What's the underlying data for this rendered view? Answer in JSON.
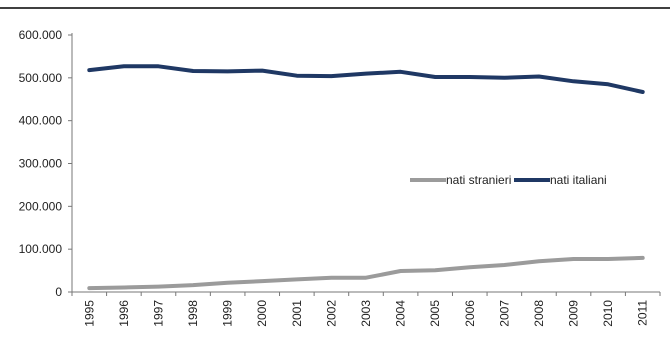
{
  "chart_data": {
    "type": "line",
    "title": "",
    "xlabel": "",
    "ylabel": "",
    "categories": [
      "1995",
      "1996",
      "1997",
      "1998",
      "1999",
      "2000",
      "2001",
      "2002",
      "2003",
      "2004",
      "2005",
      "2006",
      "2007",
      "2008",
      "2009",
      "2010",
      "2011"
    ],
    "ylim": [
      0,
      600000
    ],
    "yticks": [
      0,
      100000,
      200000,
      300000,
      400000,
      500000,
      600000
    ],
    "ytick_labels": [
      "0",
      "100.000",
      "200.000",
      "300.000",
      "400.000",
      "500.000",
      "600.000"
    ],
    "grid": false,
    "legend": "center-right",
    "series": [
      {
        "name": "nati stranieri",
        "color": "#9b9b9b",
        "values": [
          9000,
          10500,
          12500,
          16000,
          21500,
          25500,
          29500,
          33500,
          33500,
          49000,
          51000,
          58000,
          63000,
          72000,
          77000,
          77000,
          79500
        ]
      },
      {
        "name": "nati italiani",
        "color": "#1f3864",
        "values": [
          518000,
          527000,
          527000,
          516000,
          515000,
          517000,
          505000,
          504000,
          510000,
          514000,
          502000,
          502000,
          500000,
          503000,
          492000,
          485000,
          467000
        ]
      }
    ]
  }
}
